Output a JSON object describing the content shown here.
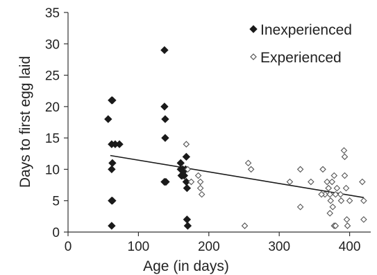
{
  "chart_data": {
    "type": "scatter",
    "title": "",
    "xlabel": "Age (in days)",
    "ylabel": "Days to first egg laid",
    "xlim": [
      0,
      430
    ],
    "ylim": [
      0,
      35
    ],
    "xticks": [
      "0",
      "100",
      "200",
      "300",
      "400"
    ],
    "yticks": [
      "0",
      "5",
      "10",
      "15",
      "20",
      "25",
      "30",
      "35"
    ],
    "grid": false,
    "legend_position": "top-right",
    "series": [
      {
        "name": "Inexperienced",
        "marker": "filled-diamond",
        "color": "#1a1a1a",
        "points": [
          [
            57,
            18
          ],
          [
            62,
            21
          ],
          [
            63,
            21
          ],
          [
            62,
            14
          ],
          [
            63,
            11
          ],
          [
            62,
            10
          ],
          [
            62,
            5
          ],
          [
            63,
            5
          ],
          [
            62,
            1
          ],
          [
            67,
            14
          ],
          [
            73,
            14
          ],
          [
            137,
            29
          ],
          [
            137,
            20
          ],
          [
            138,
            18
          ],
          [
            138,
            15
          ],
          [
            137,
            8
          ],
          [
            139,
            8
          ],
          [
            160,
            11
          ],
          [
            160,
            10
          ],
          [
            161,
            9
          ],
          [
            163,
            10
          ],
          [
            165,
            9
          ],
          [
            167,
            10
          ],
          [
            168,
            8
          ],
          [
            168,
            12
          ],
          [
            169,
            7
          ],
          [
            169,
            2
          ],
          [
            170,
            1
          ],
          [
            162,
            9
          ]
        ]
      },
      {
        "name": "Experienced",
        "marker": "open-diamond",
        "color": "#555555",
        "points": [
          [
            168,
            14
          ],
          [
            170,
            10
          ],
          [
            175,
            8
          ],
          [
            185,
            9
          ],
          [
            188,
            7
          ],
          [
            188,
            8
          ],
          [
            190,
            6
          ],
          [
            251,
            1
          ],
          [
            256,
            11
          ],
          [
            260,
            10
          ],
          [
            315,
            8
          ],
          [
            330,
            10
          ],
          [
            330,
            4
          ],
          [
            345,
            8
          ],
          [
            362,
            10
          ],
          [
            365,
            6
          ],
          [
            368,
            8
          ],
          [
            370,
            7
          ],
          [
            372,
            6
          ],
          [
            372,
            3
          ],
          [
            373,
            5
          ],
          [
            375,
            8
          ],
          [
            376,
            4
          ],
          [
            378,
            9
          ],
          [
            378,
            1
          ],
          [
            380,
            1
          ],
          [
            382,
            7
          ],
          [
            387,
            6
          ],
          [
            388,
            5
          ],
          [
            392,
            13
          ],
          [
            393,
            12
          ],
          [
            393,
            9
          ],
          [
            395,
            7
          ],
          [
            396,
            2
          ],
          [
            397,
            1
          ],
          [
            400,
            5
          ],
          [
            418,
            8
          ],
          [
            420,
            5
          ],
          [
            420,
            2
          ],
          [
            370,
            7
          ],
          [
            360,
            6
          ],
          [
            380,
            6
          ]
        ]
      }
    ],
    "trendline": {
      "x": [
        60,
        420
      ],
      "y": [
        12.2,
        5.5
      ],
      "color": "#1a1a1a"
    }
  }
}
